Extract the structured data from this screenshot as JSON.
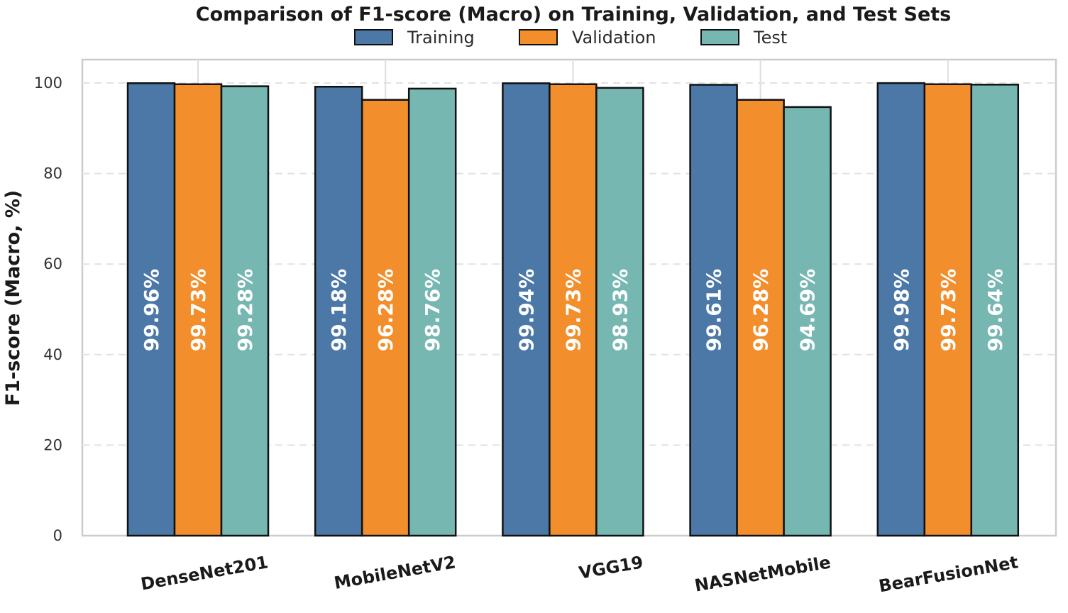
{
  "chart_data": {
    "type": "bar",
    "title": "Comparison of F1-score (Macro) on Training, Validation, and Test Sets",
    "xlabel": "",
    "ylabel": "F1-score (Macro, %)",
    "ylim": [
      0,
      105
    ],
    "yticks": [
      0,
      20,
      40,
      60,
      80,
      100
    ],
    "grid": true,
    "legend_position": "top-center",
    "categories": [
      "DenseNet201",
      "MobileNetV2",
      "VGG19",
      "NASNetMobile",
      "BearFusionNet"
    ],
    "series": [
      {
        "name": "Training",
        "color": "#4c78a8",
        "values": [
          99.96,
          99.18,
          99.94,
          99.61,
          99.98
        ],
        "labels": [
          "99.96%",
          "99.18%",
          "99.94%",
          "99.61%",
          "99.98%"
        ]
      },
      {
        "name": "Validation",
        "color": "#f28e2b",
        "values": [
          99.73,
          96.28,
          99.73,
          96.28,
          99.73
        ],
        "labels": [
          "99.73%",
          "96.28%",
          "99.73%",
          "96.28%",
          "99.73%"
        ]
      },
      {
        "name": "Test",
        "color": "#76b7b2",
        "values": [
          99.28,
          98.76,
          98.93,
          94.69,
          99.64
        ],
        "labels": [
          "99.28%",
          "98.76%",
          "98.93%",
          "94.69%",
          "99.64%"
        ]
      }
    ]
  }
}
